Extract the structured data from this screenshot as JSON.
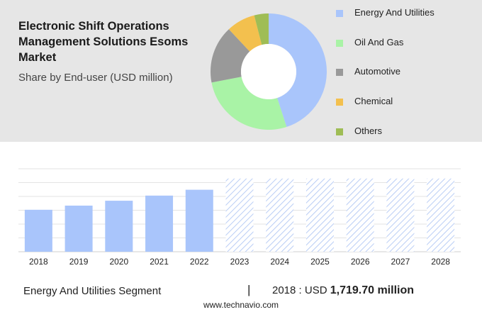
{
  "header": {
    "title": "Electronic Shift Operations Management Solutions Esoms Market",
    "subtitle": "Share by End-user (USD million)"
  },
  "legend": [
    {
      "label": "Energy And Utilities",
      "color": "#a9c5fb"
    },
    {
      "label": "Oil And Gas",
      "color": "#a9f3a6"
    },
    {
      "label": "Automotive",
      "color": "#999999"
    },
    {
      "label": "Chemical",
      "color": "#f3c04e"
    },
    {
      "label": "Others",
      "color": "#9fbd55"
    }
  ],
  "chart_data": [
    {
      "type": "pie",
      "donut": true,
      "categories": [
        "Energy And Utilities",
        "Oil And Gas",
        "Automotive",
        "Chemical",
        "Others"
      ],
      "values": [
        45,
        27,
        16,
        8,
        4
      ],
      "colors": [
        "#a9c5fb",
        "#a9f3a6",
        "#999999",
        "#f3c04e",
        "#9fbd55"
      ]
    },
    {
      "type": "bar",
      "categories": [
        "2018",
        "2019",
        "2020",
        "2021",
        "2022",
        "2023",
        "2024",
        "2025",
        "2026",
        "2027",
        "2028"
      ],
      "values": [
        1719.7,
        1890,
        2090,
        2300,
        2540,
        3000,
        3000,
        3000,
        3000,
        3000,
        3000
      ],
      "forecast_from_index": 5,
      "forecast_style": "hatched",
      "ylim": [
        0,
        3400
      ],
      "grid": true,
      "color": "#a9c5fb"
    }
  ],
  "footer": {
    "segment": "Energy And Utilities Segment",
    "divider": "|",
    "year_label": "2018 : USD",
    "amount": "1,719.70 million",
    "source": "www.technavio.com"
  }
}
